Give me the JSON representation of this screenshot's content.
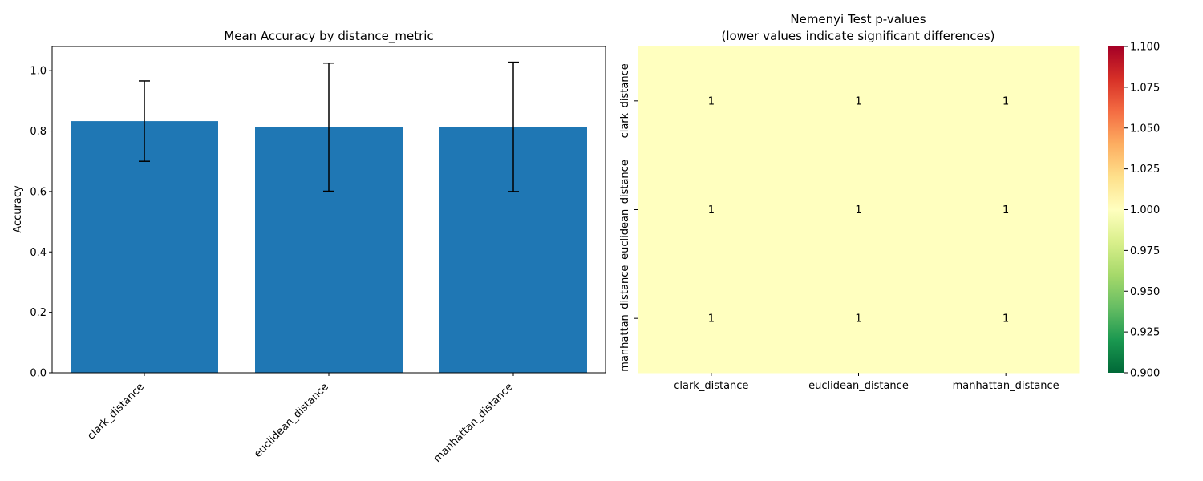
{
  "chart_data": [
    {
      "type": "bar",
      "title": "Mean Accuracy by distance_metric",
      "xlabel": "",
      "ylabel": "Accuracy",
      "categories": [
        "clark_distance",
        "euclidean_distance",
        "manhattan_distance"
      ],
      "values": [
        0.833,
        0.813,
        0.814
      ],
      "error": [
        0.133,
        0.212,
        0.214
      ],
      "ylim": [
        0,
        1.08
      ],
      "yticks": [
        0.0,
        0.2,
        0.4,
        0.6,
        0.8,
        1.0
      ],
      "ytick_labels": [
        "0.0",
        "0.2",
        "0.4",
        "0.6",
        "0.8",
        "1.0"
      ],
      "bar_color": "#1f77b4",
      "grid": false,
      "legend": "none"
    },
    {
      "type": "heatmap",
      "title": "Nemenyi Test p-values",
      "subtitle": "(lower values indicate significant differences)",
      "rows": [
        "clark_distance",
        "euclidean_distance",
        "manhattan_distance"
      ],
      "columns": [
        "clark_distance",
        "euclidean_distance",
        "manhattan_distance"
      ],
      "values": [
        [
          1,
          1,
          1
        ],
        [
          1,
          1,
          1
        ],
        [
          1,
          1,
          1
        ]
      ],
      "cell_labels": [
        [
          "1",
          "1",
          "1"
        ],
        [
          "1",
          "1",
          "1"
        ],
        [
          "1",
          "1",
          "1"
        ]
      ],
      "colormap": "RdYlGn_r",
      "colorbar_range": [
        0.9,
        1.1
      ],
      "colorbar_ticks": [
        0.9,
        0.925,
        0.95,
        0.975,
        1.0,
        1.025,
        1.05,
        1.075,
        1.1
      ],
      "colorbar_tick_labels": [
        "0.900",
        "0.925",
        "0.950",
        "0.975",
        "1.000",
        "1.025",
        "1.050",
        "1.075",
        "1.100"
      ],
      "cell_color": "#ffffbf",
      "grid": false
    }
  ]
}
